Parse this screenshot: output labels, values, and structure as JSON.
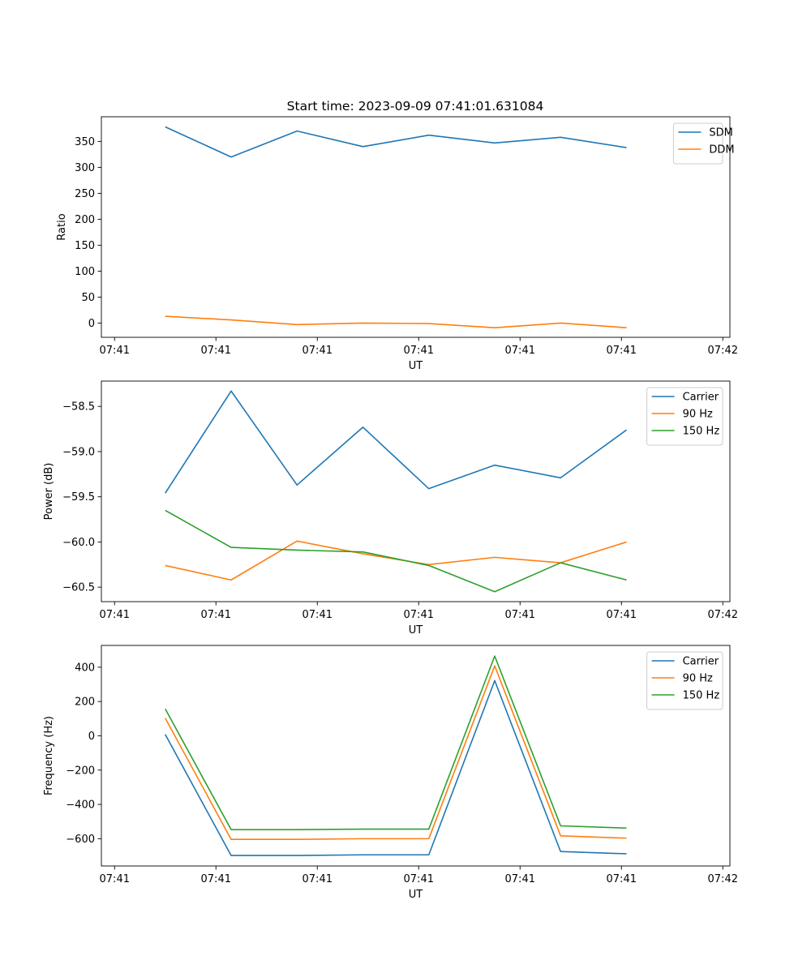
{
  "figure": {
    "title": "Start time: 2023-09-09 07:41:01.631084"
  },
  "chart_data": [
    {
      "type": "line",
      "xlabel": "UT",
      "ylabel": "Ratio",
      "x_tick_labels": [
        "07:41",
        "07:41",
        "07:41",
        "07:41",
        "07:41",
        "07:41",
        "07:42"
      ],
      "x": [
        0.5,
        1.15,
        1.8,
        2.45,
        3.1,
        3.75,
        4.4,
        5.05
      ],
      "xlim": [
        -0.13,
        6.07
      ],
      "ylim": [
        -27.5,
        397.5
      ],
      "yticks": [
        0,
        50,
        100,
        150,
        200,
        250,
        300,
        350
      ],
      "legend": "top-right",
      "series": [
        {
          "name": "SDM",
          "color": "#1f77b4",
          "values": [
            378,
            320,
            370,
            340,
            362,
            347,
            358,
            338
          ]
        },
        {
          "name": "DDM",
          "color": "#ff7f0e",
          "values": [
            13,
            6,
            -3,
            0,
            -1,
            -9,
            0,
            -9
          ]
        }
      ]
    },
    {
      "type": "line",
      "xlabel": "UT",
      "ylabel": "Power (dB)",
      "x_tick_labels": [
        "07:41",
        "07:41",
        "07:41",
        "07:41",
        "07:41",
        "07:41",
        "07:42"
      ],
      "x": [
        0.5,
        1.15,
        1.8,
        2.45,
        3.1,
        3.75,
        4.4,
        5.05
      ],
      "xlim": [
        -0.13,
        6.07
      ],
      "ylim": [
        -60.66,
        -58.22
      ],
      "yticks": [
        -60.5,
        -60.0,
        -59.5,
        -59.0,
        -58.5
      ],
      "ytick_labels": [
        "−60.5",
        "−60.0",
        "−59.5",
        "−59.0",
        "−58.5"
      ],
      "legend": "top-right",
      "series": [
        {
          "name": "Carrier",
          "color": "#1f77b4",
          "values": [
            -59.46,
            -58.33,
            -59.37,
            -58.73,
            -59.41,
            -59.15,
            -59.29,
            -58.76
          ]
        },
        {
          "name": "90 Hz",
          "color": "#ff7f0e",
          "values": [
            -60.26,
            -60.42,
            -59.99,
            -60.13,
            -60.25,
            -60.17,
            -60.23,
            -60.0
          ]
        },
        {
          "name": "150 Hz",
          "color": "#2ca02c",
          "values": [
            -59.65,
            -60.06,
            -60.09,
            -60.11,
            -60.26,
            -60.55,
            -60.23,
            -60.42
          ]
        }
      ]
    },
    {
      "type": "line",
      "xlabel": "UT",
      "ylabel": "Frequency (Hz)",
      "x_tick_labels": [
        "07:41",
        "07:41",
        "07:41",
        "07:41",
        "07:41",
        "07:41",
        "07:42"
      ],
      "x": [
        0.5,
        1.15,
        1.8,
        2.45,
        3.1,
        3.75,
        4.4,
        5.05
      ],
      "xlim": [
        -0.13,
        6.07
      ],
      "ylim": [
        -759,
        527
      ],
      "yticks": [
        -600,
        -400,
        -200,
        0,
        200,
        400
      ],
      "ytick_labels": [
        "−600",
        "−400",
        "−200",
        "0",
        "200",
        "400"
      ],
      "legend": "top-right",
      "series": [
        {
          "name": "Carrier",
          "color": "#1f77b4",
          "values": [
            8,
            -698,
            -698,
            -694,
            -694,
            322,
            -675,
            -688
          ]
        },
        {
          "name": "90 Hz",
          "color": "#ff7f0e",
          "values": [
            103,
            -604,
            -604,
            -600,
            -600,
            408,
            -583,
            -597
          ]
        },
        {
          "name": "150 Hz",
          "color": "#2ca02c",
          "values": [
            157,
            -547,
            -547,
            -544,
            -544,
            465,
            -525,
            -538
          ]
        }
      ]
    }
  ]
}
